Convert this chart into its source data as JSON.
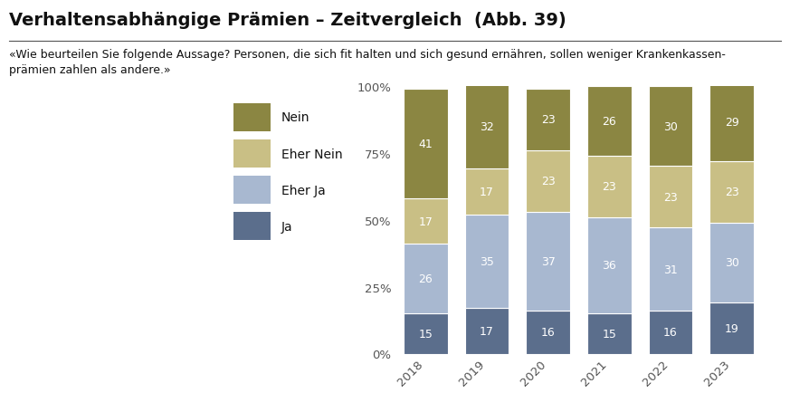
{
  "title": "Verhaltensabhängige Prämien – Zeitvergleich  (Abb. 39)",
  "subtitle": "«Wie beurteilen Sie folgende Aussage? Personen, die sich fit halten und sich gesund ernähren, sollen weniger Krankenkassenprämien zahlen als andere.»",
  "years": [
    "2018",
    "2019",
    "2020",
    "2021",
    "2022",
    "2023"
  ],
  "categories": [
    "Ja",
    "Eher Ja",
    "Eher Nein",
    "Nein"
  ],
  "data": {
    "Ja": [
      15,
      17,
      16,
      15,
      16,
      19
    ],
    "Eher Ja": [
      26,
      35,
      37,
      36,
      31,
      30
    ],
    "Eher Nein": [
      17,
      17,
      23,
      23,
      23,
      23
    ],
    "Nein": [
      41,
      32,
      23,
      26,
      30,
      29
    ]
  },
  "colors": {
    "Ja": "#5b6e8c",
    "Eher Ja": "#a8b8d0",
    "Eher Nein": "#c9bf85",
    "Nein": "#8b8642"
  },
  "background_color": "#ffffff",
  "title_fontsize": 14,
  "subtitle_fontsize": 9,
  "label_fontsize": 9,
  "legend_fontsize": 10,
  "yticks": [
    0,
    25,
    50,
    75,
    100
  ],
  "ytick_labels": [
    "0%",
    "25%",
    "50%",
    "75%",
    "100%"
  ]
}
